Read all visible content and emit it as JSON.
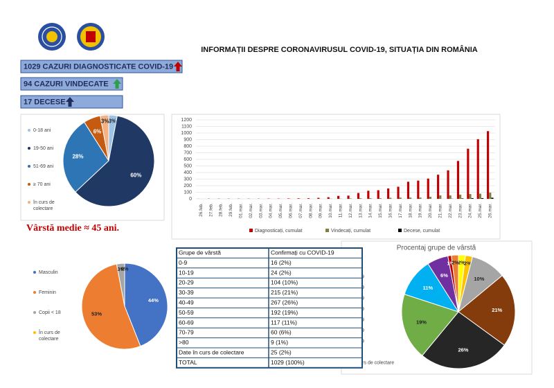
{
  "header": {
    "title": "INFORMAȚII DESPRE CORONAVIRUSUL COVID-19, SITUAȚIA DIN ROMÂNIA"
  },
  "stats": [
    "1029 CAZURI DIAGNOSTICATE COVID-19",
    "94 CAZURI VINDECATE",
    "17 DECESE"
  ],
  "note": "Vârstă medie ≈ 45 ani.",
  "chart_data": [
    {
      "type": "pie",
      "categories": [
        "0-18 ani",
        "19-50 ani",
        "51-69 ani",
        "≥ 70 ani",
        "în curs de colectare"
      ],
      "values": [
        3,
        60,
        28,
        6,
        3
      ],
      "value_labels": [
        "3%",
        "60%",
        "28%",
        "6%",
        "3%"
      ],
      "colors": [
        "#9dc3e6",
        "#1f3864",
        "#2e75b6",
        "#c55a11",
        "#f4b183"
      ],
      "legend": "left"
    },
    {
      "type": "bar",
      "categories": [
        "26.feb.",
        "27.feb.",
        "28.feb.",
        "29.feb.",
        "01.mar.",
        "02.mar.",
        "03.mar.",
        "04.mar.",
        "05.mar.",
        "06.mar.",
        "07.mar.",
        "08.mar.",
        "09.mar.",
        "10.mar.",
        "11.mar.",
        "12.mar.",
        "13.mar.",
        "14.mar.",
        "15.mar.",
        "16.mar.",
        "17.mar.",
        "18.mar.",
        "19.mar.",
        "20.mar.",
        "21.mar.",
        "22.mar.",
        "23.mar.",
        "24.mar.",
        "25.mar.",
        "26.mar."
      ],
      "series": [
        {
          "name": "Diagnosticați, cumulat",
          "color": "#c00000",
          "values": [
            1,
            3,
            3,
            3,
            3,
            3,
            3,
            4,
            4,
            6,
            8,
            9,
            15,
            25,
            45,
            49,
            89,
            123,
            131,
            158,
            184,
            260,
            277,
            308,
            367,
            433,
            576,
            762,
            906,
            1029
          ]
        },
        {
          "name": "Vindecați, cumulat",
          "color": "#7f7f3f",
          "values": [
            0,
            0,
            0,
            0,
            0,
            0,
            0,
            1,
            1,
            1,
            1,
            1,
            1,
            3,
            3,
            6,
            9,
            9,
            9,
            16,
            19,
            19,
            19,
            31,
            52,
            52,
            64,
            73,
            79,
            94
          ]
        },
        {
          "name": "Decese, cumulat",
          "color": "#000000",
          "values": [
            0,
            0,
            0,
            0,
            0,
            0,
            0,
            0,
            0,
            0,
            0,
            0,
            0,
            0,
            0,
            0,
            0,
            0,
            0,
            0,
            0,
            0,
            0,
            0,
            0,
            2,
            7,
            11,
            11,
            17
          ]
        }
      ],
      "ylim": [
        0,
        1200
      ],
      "yticks": [
        0,
        100,
        200,
        300,
        400,
        500,
        600,
        700,
        800,
        900,
        1000,
        1100,
        1200
      ],
      "grid": true,
      "legend": "bottom"
    },
    {
      "type": "pie",
      "categories": [
        "Masculin",
        "Feminin",
        "Copii < 18",
        "În curs de colectare"
      ],
      "values": [
        44,
        53,
        3,
        0
      ],
      "value_labels": [
        "44%",
        "53%",
        "3%",
        "0%"
      ],
      "colors": [
        "#4472c4",
        "#ed7d31",
        "#a5a5a5",
        "#ffc000"
      ],
      "legend": "left"
    },
    {
      "type": "pie",
      "title": "Procentaj grupe de vârstă",
      "categories": [
        "0-9",
        "10-19",
        "20-29",
        "30-39",
        "40-49",
        "50-59",
        "60-69",
        "70-79",
        ">80",
        "în curs de colectare"
      ],
      "values": [
        2,
        2,
        10,
        21,
        26,
        19,
        11,
        6,
        1,
        2
      ],
      "value_labels": [
        "2%",
        "2%",
        "10%",
        "21%",
        "26%",
        "19%",
        "11%",
        "6%",
        "1%",
        "2%"
      ],
      "colors": [
        "#ffff00",
        "#ffc000",
        "#a5a5a5",
        "#843c0c",
        "#262626",
        "#70ad47",
        "#00b0f0",
        "#7030a0",
        "#c00000",
        "#ed7d31"
      ],
      "legend": "left"
    }
  ],
  "table": {
    "header": [
      "Grupe de vârstă",
      "Confirmați cu COVID-19"
    ],
    "rows": [
      [
        "0-9",
        "16 (2%)"
      ],
      [
        "10-19",
        "24 (2%)"
      ],
      [
        "20-29",
        "104 (10%)"
      ],
      [
        "30-39",
        "215 (21%)"
      ],
      [
        "40-49",
        "267 (26%)"
      ],
      [
        "50-59",
        "192 (19%)"
      ],
      [
        "60-69",
        "117 (11%)"
      ],
      [
        "70-79",
        "60 (6%)"
      ],
      [
        ">80",
        "9 (1%)"
      ],
      [
        "Date în curs de colectare",
        "25 (2%)"
      ],
      [
        "TOTAL",
        "1029 (100%)"
      ]
    ]
  }
}
